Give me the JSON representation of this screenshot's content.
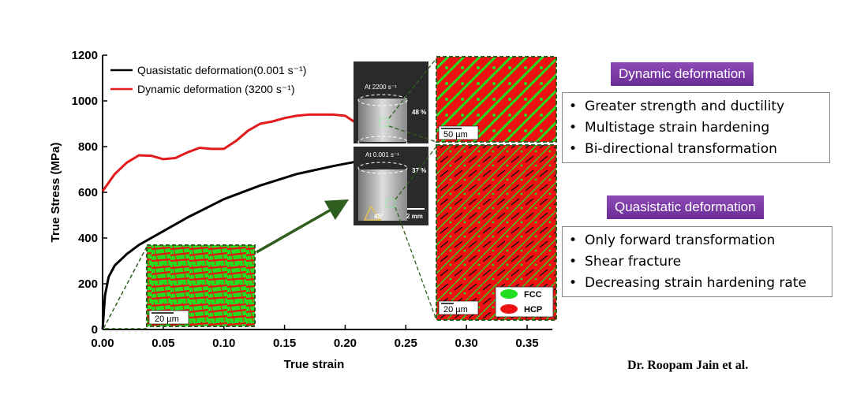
{
  "chart_data": {
    "type": "line",
    "xlabel": "True strain",
    "ylabel": "True Stress (MPa)",
    "xlim": [
      0,
      0.35
    ],
    "ylim": [
      0,
      1200
    ],
    "x_ticks": [
      "0.00",
      "0.05",
      "0.10",
      "0.15",
      "0.20",
      "0.25",
      "0.30",
      "0.35"
    ],
    "y_ticks": [
      "0",
      "200",
      "400",
      "600",
      "800",
      "1000",
      "1200"
    ],
    "legend_position": "top-left",
    "series": [
      {
        "name": "Quasistatic deformation(0.001 s⁻¹)",
        "color": "#000000",
        "x": [
          0,
          0.002,
          0.005,
          0.01,
          0.02,
          0.03,
          0.05,
          0.07,
          0.1,
          0.13,
          0.16,
          0.19,
          0.21
        ],
        "y": [
          0,
          150,
          230,
          280,
          330,
          370,
          430,
          490,
          570,
          630,
          680,
          715,
          735
        ]
      },
      {
        "name": "Dynamic deformation (3200 s⁻¹)",
        "color": "#e31a1c",
        "x": [
          0,
          0.01,
          0.02,
          0.03,
          0.04,
          0.05,
          0.06,
          0.07,
          0.08,
          0.09,
          0.1,
          0.11,
          0.12,
          0.13,
          0.14,
          0.15,
          0.16,
          0.17,
          0.18,
          0.19,
          0.2,
          0.21
        ],
        "y": [
          605,
          680,
          730,
          762,
          760,
          745,
          750,
          775,
          795,
          790,
          790,
          825,
          870,
          900,
          910,
          925,
          935,
          940,
          940,
          940,
          935,
          900
        ]
      }
    ]
  },
  "insets": {
    "micro_quasi_scale": "20 µm",
    "micro_dynamic_top_scale": "50 µm",
    "micro_dynamic_bottom_scale": "20 µm",
    "phase_legend": [
      {
        "label": "FCC",
        "color": "#22dd22"
      },
      {
        "label": "HCP",
        "color": "#ee1111"
      }
    ],
    "photo_dynamic": {
      "label": "At 2200 s⁻¹",
      "percent": "48 %"
    },
    "photo_quasi": {
      "label": "At 0.001 s⁻¹",
      "percent": "37 %",
      "angle": "45°",
      "scale": "2 mm"
    }
  },
  "panels": {
    "dynamic": {
      "title": "Dynamic deformation",
      "items": [
        "Greater strength and ductility",
        "Multistage strain hardening",
        "Bi-directional transformation"
      ]
    },
    "quasistatic": {
      "title": "Quasistatic deformation",
      "items": [
        "Only forward transformation",
        "Shear fracture",
        "Decreasing strain hardening rate"
      ]
    }
  },
  "credit": "Dr. Roopam Jain et al.",
  "colors": {
    "fcc": "#22dd22",
    "hcp": "#ee1111",
    "panel_title": "#7b3aa6",
    "arrow": "#2f5f1f"
  }
}
